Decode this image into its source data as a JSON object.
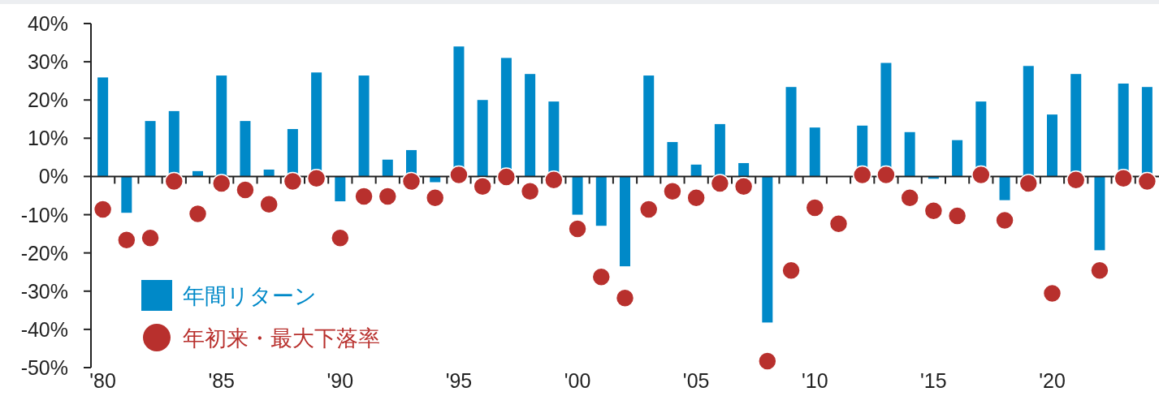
{
  "chart_data": {
    "type": "bar",
    "categories": [
      "'80",
      null,
      null,
      null,
      null,
      "'85",
      null,
      null,
      null,
      null,
      "'90",
      null,
      null,
      null,
      null,
      "'95",
      null,
      null,
      null,
      null,
      "'00",
      null,
      null,
      null,
      null,
      "'05",
      null,
      null,
      null,
      null,
      "'10",
      null,
      null,
      null,
      null,
      "'15",
      null,
      null,
      null,
      null,
      "'20",
      null,
      null,
      null,
      null
    ],
    "series": [
      {
        "name": "年間リターン",
        "color": "#0089c8",
        "values": [
          25.9,
          -9.5,
          14.5,
          17.1,
          1.4,
          26.4,
          14.5,
          1.8,
          12.4,
          27.2,
          -6.5,
          26.4,
          4.4,
          6.9,
          -1.5,
          34.0,
          20.0,
          31.0,
          26.8,
          19.6,
          -10.0,
          -12.9,
          -23.5,
          26.4,
          9.0,
          3.1,
          13.7,
          3.5,
          -38.2,
          23.4,
          12.8,
          0,
          13.3,
          29.7,
          11.6,
          -0.6,
          9.5,
          19.6,
          -6.2,
          28.9,
          16.2,
          26.8,
          -19.3,
          24.3,
          23.4
        ]
      },
      {
        "name": "年初来・最大下落率",
        "type": "scatter",
        "marker": "circle",
        "color": "#b8302d",
        "values": [
          -8.6,
          -16.6,
          -16.1,
          -1.3,
          -9.8,
          -1.8,
          -3.5,
          -7.3,
          -1.3,
          -0.5,
          -16.1,
          -5.2,
          -5.2,
          -1.3,
          -5.6,
          0.4,
          -2.6,
          -0.1,
          -3.9,
          -0.9,
          -13.7,
          -26.3,
          -31.8,
          -8.6,
          -3.9,
          -5.6,
          -1.8,
          -2.6,
          -48.3,
          -24.6,
          -8.2,
          -12.4,
          0.4,
          0.4,
          -5.6,
          -9.0,
          -10.3,
          0.4,
          -11.5,
          -1.8,
          -30.6,
          -0.9,
          -24.6,
          -0.5,
          -1.3
        ]
      }
    ],
    "ylim": [
      -50,
      40
    ],
    "yticks": [
      {
        "value": 40,
        "label": "40%"
      },
      {
        "value": 30,
        "label": "30%"
      },
      {
        "value": 20,
        "label": "20%"
      },
      {
        "value": 10,
        "label": "10%"
      },
      {
        "value": 0,
        "label": "0%"
      },
      {
        "value": -10,
        "label": "-10%"
      },
      {
        "value": -20,
        "label": "-20%"
      },
      {
        "value": -30,
        "label": "-30%"
      },
      {
        "value": -40,
        "label": "-40%"
      },
      {
        "value": -50,
        "label": "-50%"
      }
    ],
    "legend": "bottom left"
  }
}
